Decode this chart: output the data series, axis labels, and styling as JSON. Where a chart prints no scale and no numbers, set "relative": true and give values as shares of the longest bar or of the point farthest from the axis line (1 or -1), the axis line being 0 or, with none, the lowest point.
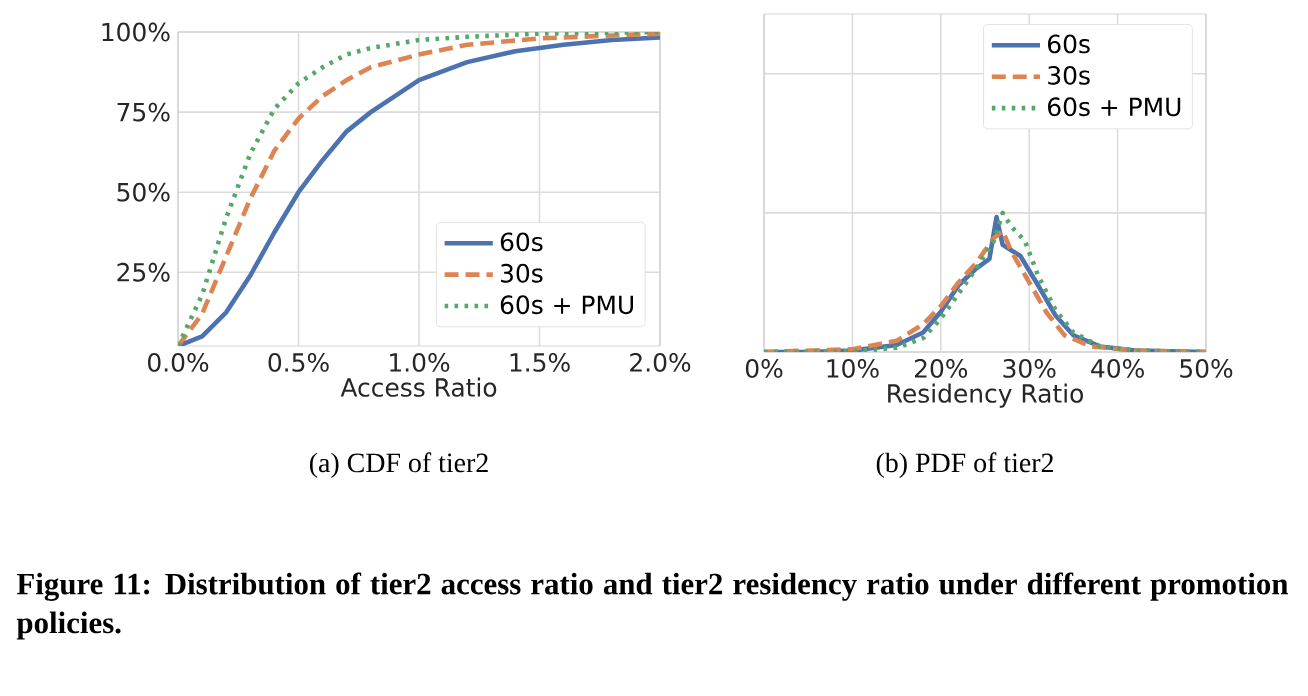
{
  "chart_data": [
    {
      "type": "line",
      "title": "(a) CDF of tier2",
      "xlabel": "Access Ratio",
      "xlim": [
        0,
        2
      ],
      "ylim": [
        2,
        100
      ],
      "xticks": [
        {
          "value": 0,
          "label": "0.0%"
        },
        {
          "value": 0.5,
          "label": "0.5%"
        },
        {
          "value": 1,
          "label": "1.0%"
        },
        {
          "value": 1.5,
          "label": "1.5%"
        },
        {
          "value": 2,
          "label": "2.0%"
        }
      ],
      "yticks": [
        {
          "value": 25,
          "label": "25%"
        },
        {
          "value": 50,
          "label": "50%"
        },
        {
          "value": 75,
          "label": "75%"
        },
        {
          "value": 100,
          "label": "100%"
        }
      ],
      "grid": true,
      "legend": "bottom right",
      "marker": "none",
      "series": [
        {
          "name": "60s",
          "color": "#4c72b0",
          "line_style": "solid",
          "x": [
            0,
            0.1,
            0.2,
            0.3,
            0.4,
            0.5,
            0.6,
            0.7,
            0.8,
            0.9,
            1.0,
            1.2,
            1.4,
            1.6,
            1.8,
            2.0
          ],
          "values": [
            2,
            5,
            12.5,
            24,
            37.5,
            50,
            60,
            69,
            75,
            80,
            85,
            90.6,
            94,
            96,
            97.5,
            98.3
          ]
        },
        {
          "name": "30s",
          "color": "#dd8452",
          "line_style": "dashed",
          "x": [
            0,
            0.1,
            0.2,
            0.3,
            0.4,
            0.5,
            0.6,
            0.7,
            0.8,
            1.0,
            1.2,
            1.5,
            2.0
          ],
          "values": [
            2,
            12,
            30,
            48,
            63,
            73,
            80,
            85,
            89,
            93,
            96,
            98,
            99.5
          ]
        },
        {
          "name": "60s + PMU",
          "color": "#55a868",
          "line_style": "dotted",
          "x": [
            0,
            0.1,
            0.2,
            0.3,
            0.4,
            0.5,
            0.6,
            0.7,
            0.8,
            1.0,
            1.2,
            1.5,
            2.0
          ],
          "values": [
            2,
            18,
            42,
            62,
            76,
            84,
            89,
            93,
            95,
            97.5,
            98.5,
            99.5,
            100
          ]
        }
      ],
      "annotations": [
        "Figure 11: Distribution of tier2 access ratio and tier2 residency ratio under different promotion policies."
      ]
    },
    {
      "type": "line",
      "title": "(b) PDF of tier2",
      "xlabel": "Residency Ratio",
      "relative": true,
      "xlim": [
        0,
        50
      ],
      "xticks": [
        {
          "value": 0,
          "label": "0%"
        },
        {
          "value": 10,
          "label": "10%"
        },
        {
          "value": 20,
          "label": "20%"
        },
        {
          "value": 30,
          "label": "30%"
        },
        {
          "value": 40,
          "label": "40%"
        },
        {
          "value": 50,
          "label": "50%"
        }
      ],
      "grid": true,
      "legend": "top right",
      "marker": "none",
      "tick_labels": "x",
      "series": [
        {
          "name": "60s",
          "color": "#4c72b0",
          "line_style": "solid",
          "x": [
            0,
            5,
            10,
            15,
            18,
            20,
            22,
            24,
            25.5,
            26.3,
            27,
            29,
            31,
            33,
            35,
            38,
            42,
            50
          ],
          "values": [
            0,
            0,
            0.01,
            0.05,
            0.14,
            0.29,
            0.48,
            0.6,
            0.67,
            0.97,
            0.77,
            0.69,
            0.48,
            0.26,
            0.12,
            0.04,
            0.01,
            0
          ]
        },
        {
          "name": "30s",
          "color": "#dd8452",
          "line_style": "dashed",
          "x": [
            0,
            10,
            15,
            18,
            20,
            22,
            24,
            26,
            27,
            28,
            30,
            32,
            34,
            37,
            42,
            50
          ],
          "values": [
            0,
            0.02,
            0.08,
            0.2,
            0.33,
            0.5,
            0.64,
            0.82,
            0.87,
            0.72,
            0.5,
            0.28,
            0.12,
            0.04,
            0.01,
            0
          ]
        },
        {
          "name": "60s + PMU",
          "color": "#55a868",
          "line_style": "dotted",
          "x": [
            0,
            10,
            15,
            18,
            20,
            22,
            24,
            26,
            27,
            28,
            29.5,
            31,
            33,
            35,
            38,
            42,
            50
          ],
          "values": [
            0,
            0.005,
            0.03,
            0.1,
            0.24,
            0.42,
            0.6,
            0.8,
            1,
            0.9,
            0.8,
            0.55,
            0.3,
            0.14,
            0.04,
            0.01,
            0
          ]
        }
      ]
    }
  ]
}
